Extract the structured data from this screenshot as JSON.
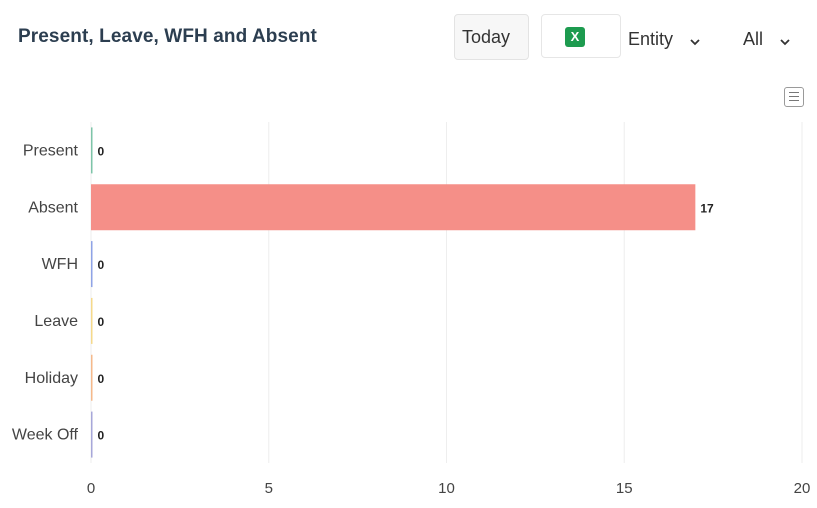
{
  "header": {
    "title": "Present, Leave, WFH and Absent",
    "period_label": "Today",
    "excel_icon_glyph": "X",
    "entity_label": "Entity",
    "filter_label": "All"
  },
  "colors": {
    "excel": "#1d9b4f"
  },
  "chart_data": {
    "type": "bar",
    "orientation": "horizontal",
    "categories": [
      "Present",
      "Absent",
      "WFH",
      "Leave",
      "Holiday",
      "Week Off"
    ],
    "values": [
      0,
      17,
      0,
      0,
      0,
      0
    ],
    "data_labels": [
      "0",
      "17",
      "0",
      "0",
      "0",
      "0"
    ],
    "bar_colors": [
      "#7ec4a8",
      "#f58f88",
      "#8fa3e6",
      "#f5d98b",
      "#f5b98b",
      "#a7a7d9"
    ],
    "xlim": [
      0,
      20
    ],
    "xticks": [
      0,
      5,
      10,
      15,
      20
    ],
    "grid": true
  }
}
